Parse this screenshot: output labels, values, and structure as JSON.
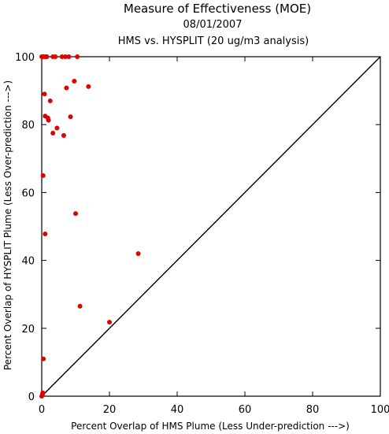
{
  "chart_data": {
    "type": "scatter",
    "title": "Measure of Effectiveness (MOE)",
    "subtitles": [
      "08/01/2007",
      "HMS vs. HYSPLIT  (20 ug/m3 analysis)"
    ],
    "xlabel": "Percent Overlap of HMS Plume (Less Under-prediction --->)",
    "ylabel": "Percent Overlap of HYSPLIT Plume (Less Over-prediction --->)",
    "xlim": [
      0,
      100
    ],
    "ylim": [
      0,
      100
    ],
    "xticks": [
      "0",
      "20",
      "40",
      "60",
      "80",
      "100"
    ],
    "yticks": [
      "0",
      "20",
      "40",
      "60",
      "80",
      "100"
    ],
    "reference_line": "y = x",
    "marker_color": "#e00000",
    "points": [
      {
        "x": 0.0,
        "y": 0.0
      },
      {
        "x": 0.2,
        "y": 0.5
      },
      {
        "x": 0.3,
        "y": 1.0
      },
      {
        "x": 0.5,
        "y": 11.0
      },
      {
        "x": 0.4,
        "y": 65.0
      },
      {
        "x": 1.0,
        "y": 47.8
      },
      {
        "x": 0.8,
        "y": 89.0
      },
      {
        "x": 1.0,
        "y": 82.5
      },
      {
        "x": 1.8,
        "y": 82.0
      },
      {
        "x": 2.0,
        "y": 81.3
      },
      {
        "x": 2.5,
        "y": 87.0
      },
      {
        "x": 3.3,
        "y": 77.5
      },
      {
        "x": 4.5,
        "y": 79.0
      },
      {
        "x": 6.5,
        "y": 76.8
      },
      {
        "x": 7.3,
        "y": 90.8
      },
      {
        "x": 8.5,
        "y": 82.3
      },
      {
        "x": 9.6,
        "y": 92.8
      },
      {
        "x": 10.0,
        "y": 53.8
      },
      {
        "x": 11.3,
        "y": 26.5
      },
      {
        "x": 13.8,
        "y": 91.2
      },
      {
        "x": 20.0,
        "y": 21.8
      },
      {
        "x": 28.5,
        "y": 42.0
      },
      {
        "x": 0.0,
        "y": 100
      },
      {
        "x": 0.5,
        "y": 100
      },
      {
        "x": 1.0,
        "y": 100
      },
      {
        "x": 1.5,
        "y": 100
      },
      {
        "x": 3.3,
        "y": 100
      },
      {
        "x": 4.0,
        "y": 100
      },
      {
        "x": 6.0,
        "y": 100
      },
      {
        "x": 7.0,
        "y": 100
      },
      {
        "x": 8.0,
        "y": 100
      },
      {
        "x": 10.5,
        "y": 100
      }
    ]
  }
}
